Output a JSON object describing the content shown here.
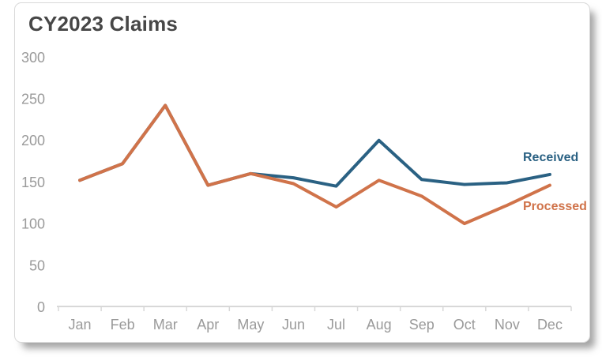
{
  "chart_data": {
    "type": "line",
    "title": "CY2023 Claims",
    "categories": [
      "Jan",
      "Feb",
      "Mar",
      "Apr",
      "May",
      "Jun",
      "Jul",
      "Aug",
      "Sep",
      "Oct",
      "Nov",
      "Dec"
    ],
    "series": [
      {
        "name": "Received",
        "color": "#2A6183",
        "values": [
          152,
          172,
          242,
          146,
          160,
          155,
          145,
          200,
          153,
          147,
          149,
          159
        ]
      },
      {
        "name": "Processed",
        "color": "#D0734A",
        "values": [
          152,
          172,
          242,
          146,
          160,
          148,
          120,
          152,
          133,
          100,
          122,
          146
        ]
      }
    ],
    "xlabel": "",
    "ylabel": "",
    "ylim": [
      0,
      300
    ],
    "yticks": [
      0,
      50,
      100,
      150,
      200,
      250,
      300
    ],
    "grid": false,
    "legend_position": "inline-right-of-lines",
    "note": "Received and Processed lines overlap exactly from Jan through May"
  },
  "colors": {
    "axis_line": "#d8d8d8",
    "axis_text": "#9a9a9a",
    "title_text": "#474747",
    "card_background": "#ffffff",
    "card_border": "#d9d9d9"
  }
}
